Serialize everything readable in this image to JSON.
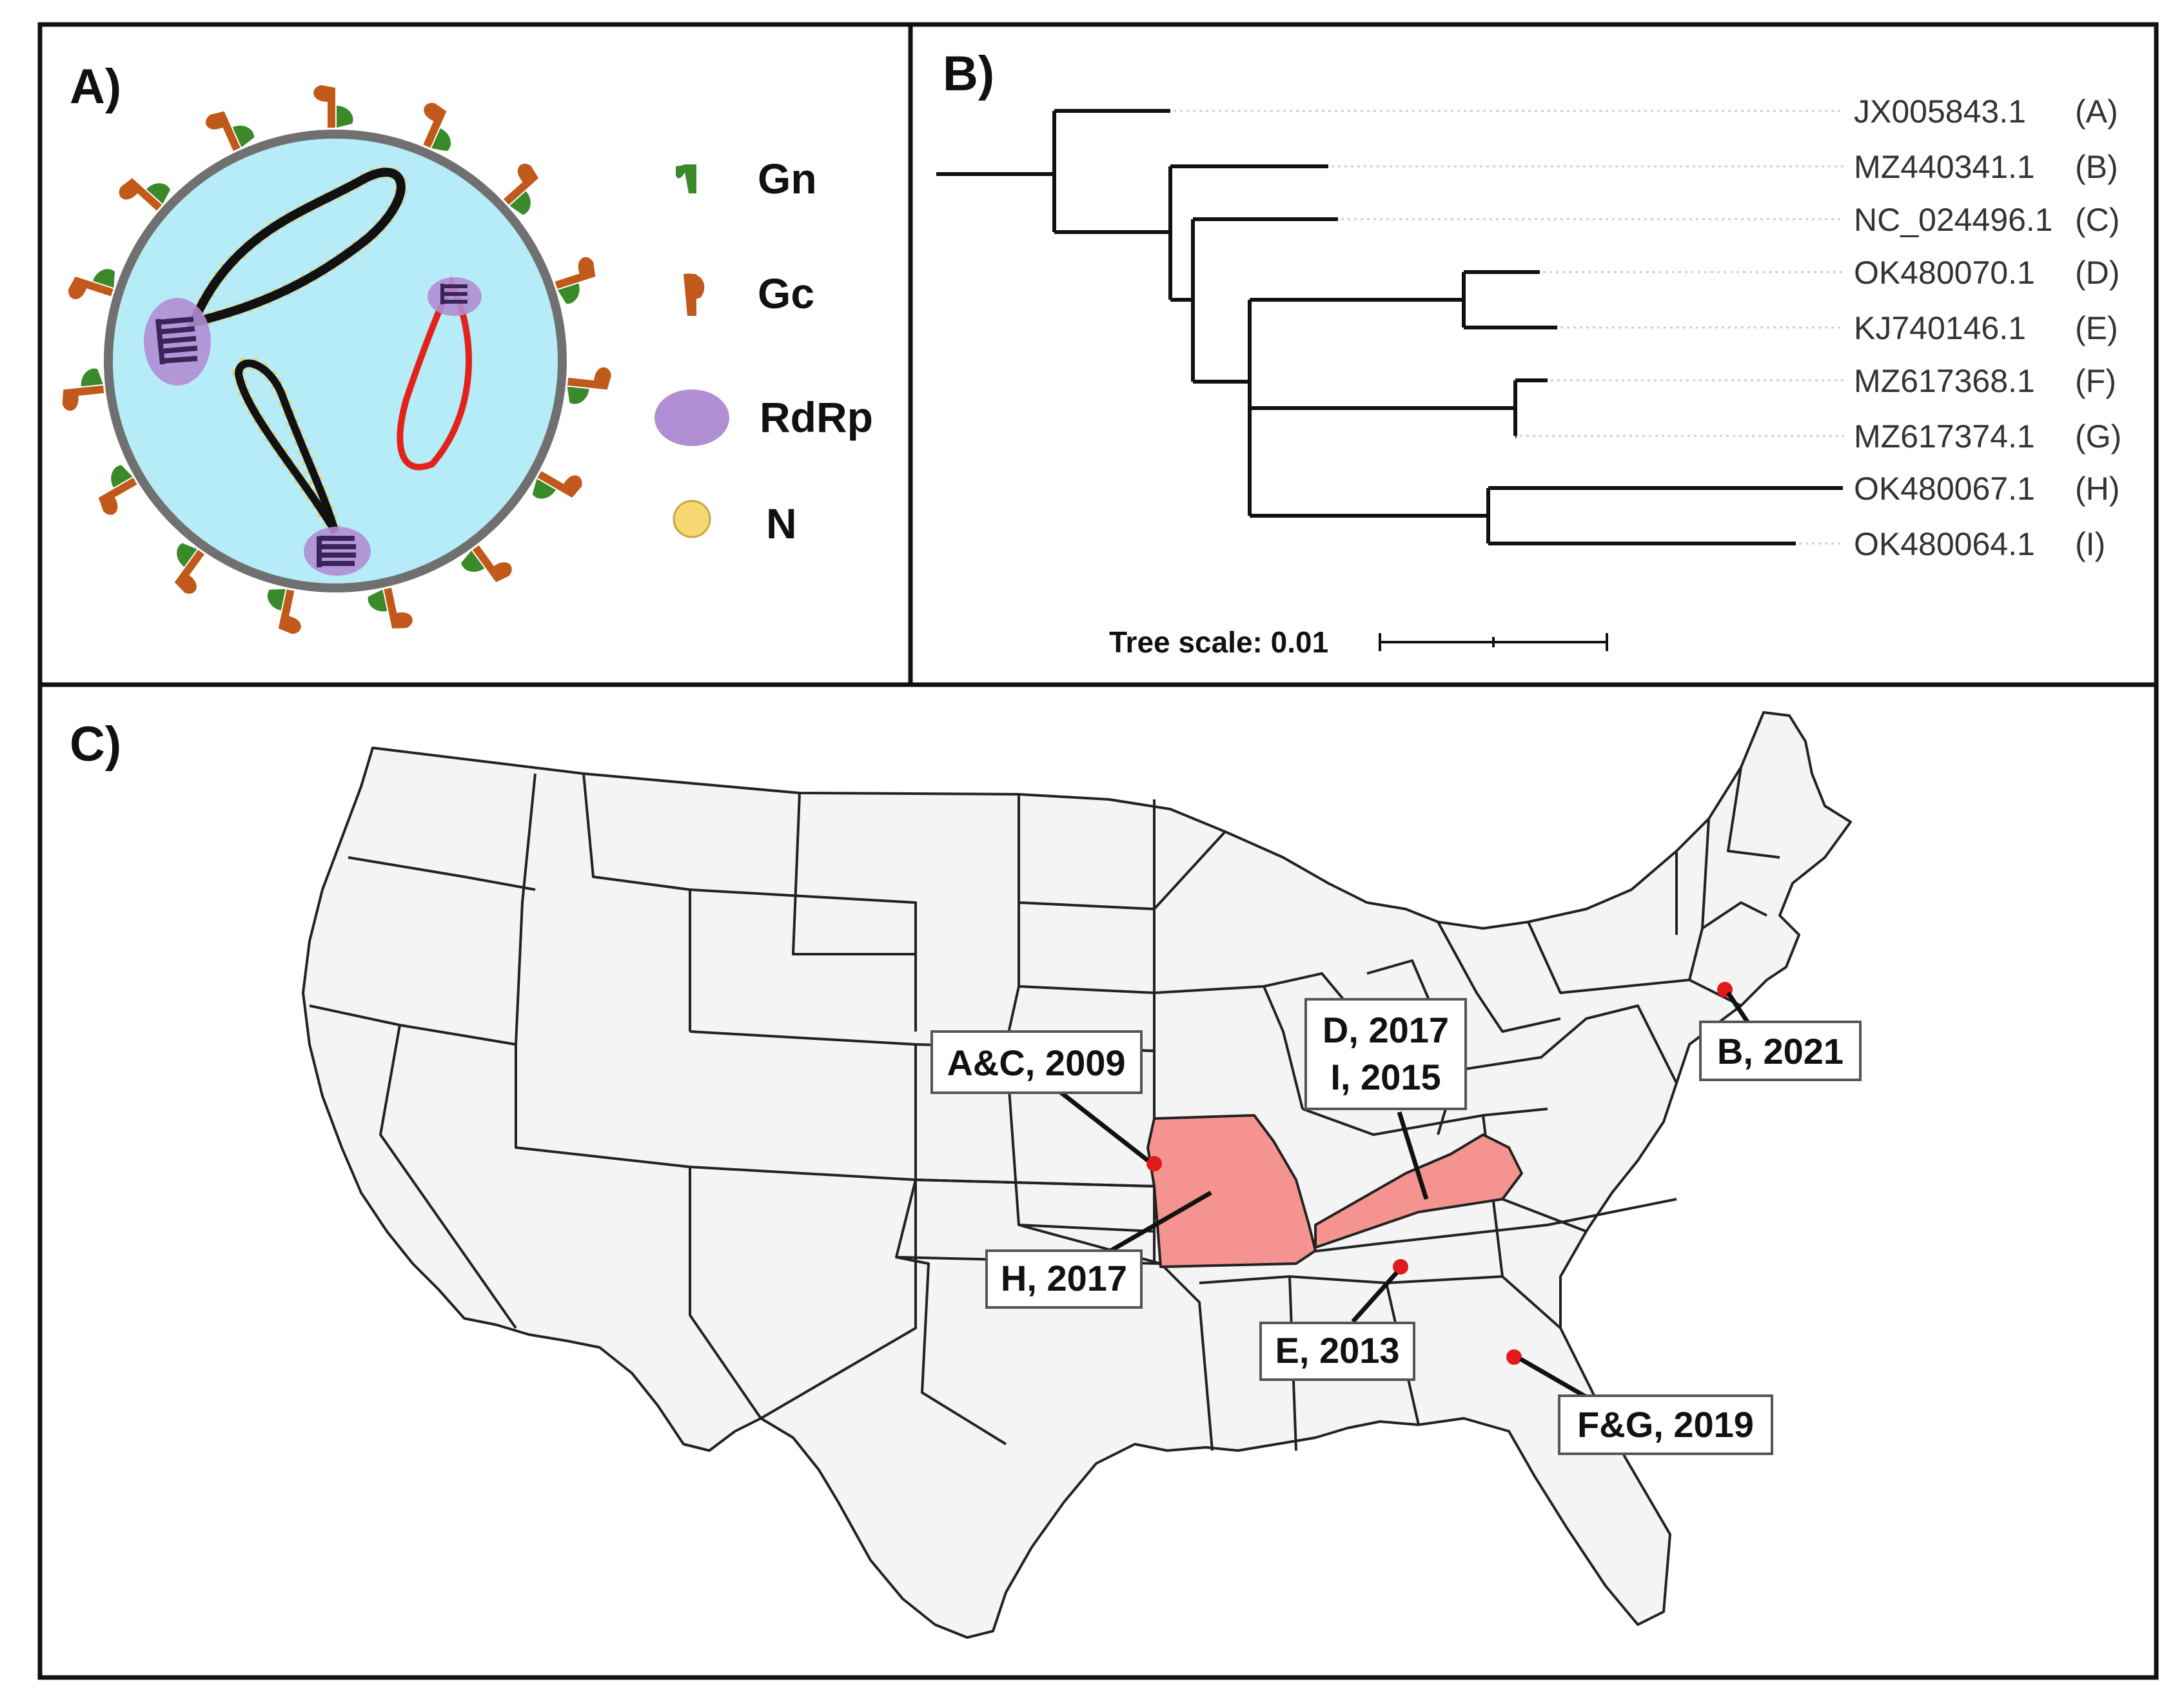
{
  "panels": {
    "a": {
      "label": "A)",
      "legend": [
        {
          "name": "Gn",
          "icon": "gn-glycoprotein-icon",
          "color": "#3a8a2a"
        },
        {
          "name": "Gc",
          "icon": "gc-glycoprotein-icon",
          "color": "#c0591a"
        },
        {
          "name": "RdRp",
          "icon": "rdrp-ellipse-icon",
          "color": "#b08ed4"
        },
        {
          "name": "N",
          "icon": "nucleoprotein-circle-icon",
          "color": "#f7d774"
        }
      ],
      "colors": {
        "virion_fill": "#b5ecf7",
        "envelope": "#707070",
        "segment": "#111111",
        "segment_highlight": "#e3231b"
      }
    },
    "b": {
      "label": "B)",
      "leaves": [
        {
          "accession": "JX005843.1",
          "code": "(A)"
        },
        {
          "accession": "MZ440341.1",
          "code": "(B)"
        },
        {
          "accession": "NC_024496.1",
          "code": "(C)"
        },
        {
          "accession": "OK480070.1",
          "code": "(D)"
        },
        {
          "accession": "KJ740146.1",
          "code": "(E)"
        },
        {
          "accession": "MZ617368.1",
          "code": "(F)"
        },
        {
          "accession": "MZ617374.1",
          "code": "(G)"
        },
        {
          "accession": "OK480067.1",
          "code": "(H)"
        },
        {
          "accession": "OK480064.1",
          "code": "(I)"
        }
      ],
      "scale_label": "Tree scale: 0.01"
    },
    "c": {
      "label": "C)",
      "callouts": [
        {
          "lines": [
            "A&C, 2009"
          ]
        },
        {
          "lines": [
            "D, 2017",
            "I, 2015"
          ]
        },
        {
          "lines": [
            "B, 2021"
          ]
        },
        {
          "lines": [
            "H, 2017"
          ]
        },
        {
          "lines": [
            "E, 2013"
          ]
        },
        {
          "lines": [
            "F&G, 2019"
          ]
        }
      ],
      "colors": {
        "state_fill": "#f4f4f4",
        "highlight_fill": "#f4938f",
        "marker": "#e11b1b"
      }
    }
  }
}
